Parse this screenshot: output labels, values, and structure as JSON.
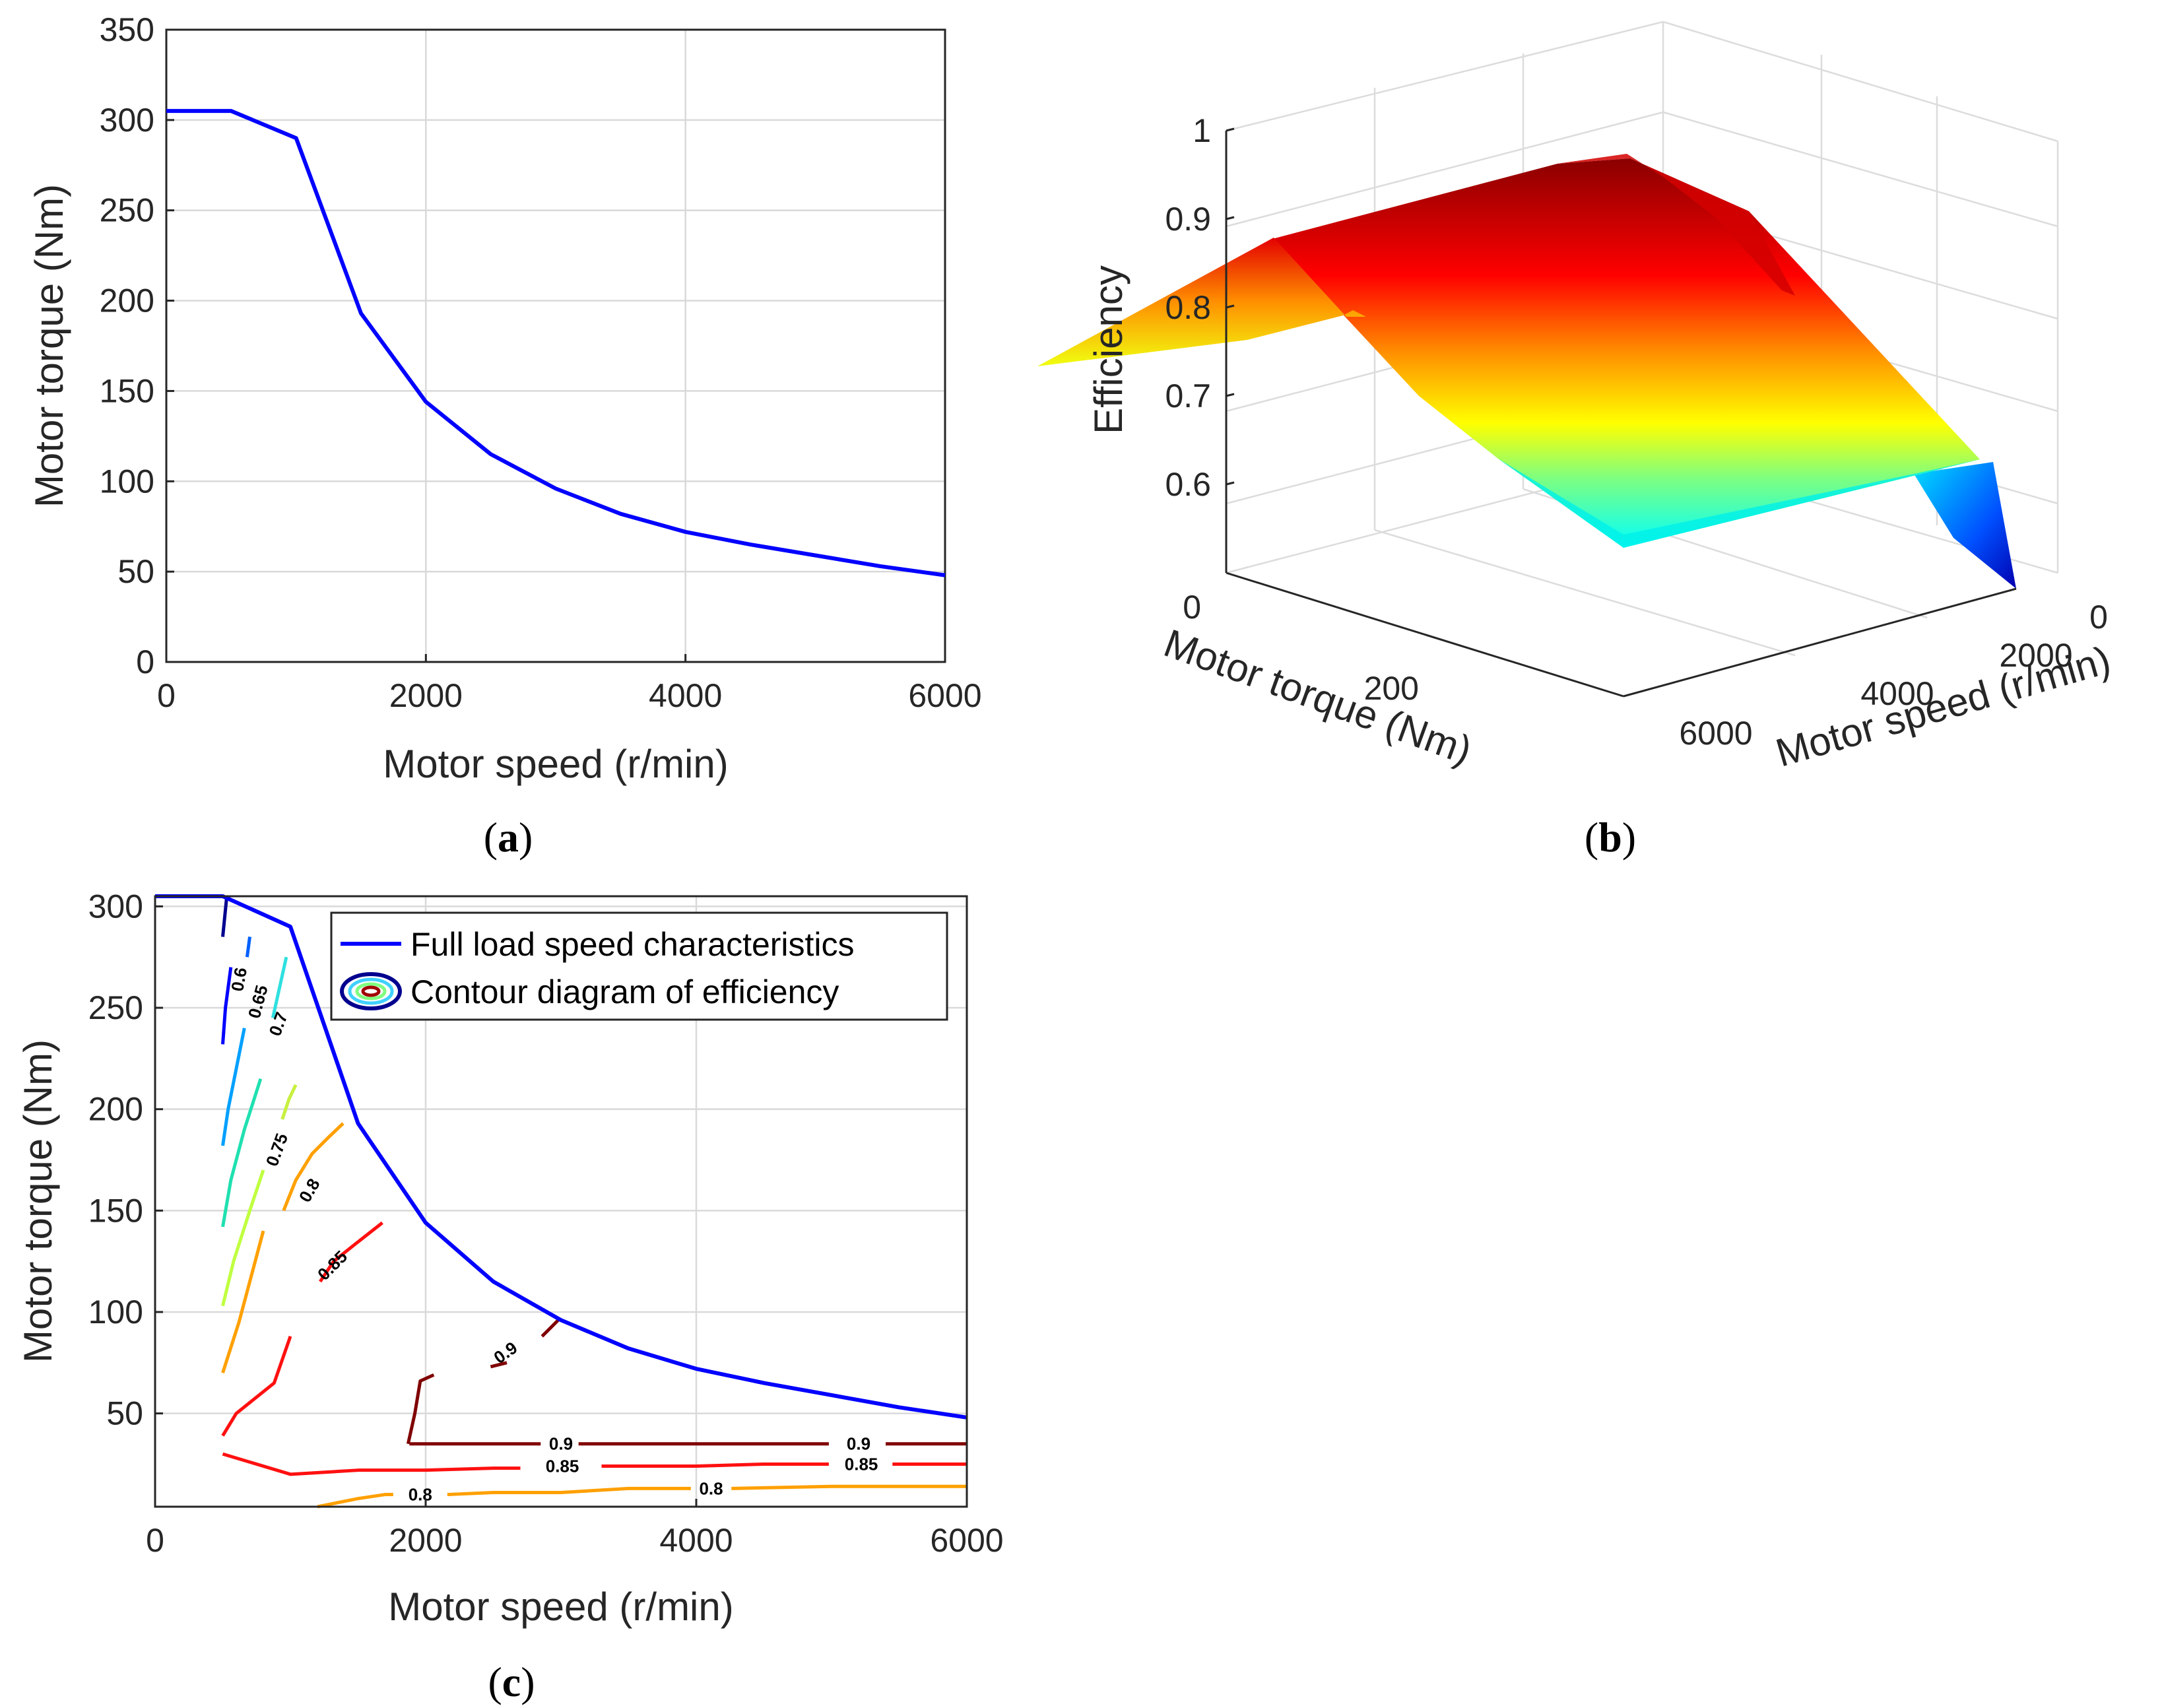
{
  "chart_data": [
    {
      "id": "a",
      "panel_label": "a",
      "type": "line",
      "xlabel": "Motor speed (r/min)",
      "ylabel": "Motor torque (Nm)",
      "xlim": [
        0,
        6000
      ],
      "ylim": [
        0,
        350
      ],
      "xticks": [
        "0",
        "2000",
        "4000",
        "6000"
      ],
      "yticks": [
        "0",
        "50",
        "100",
        "150",
        "200",
        "250",
        "300",
        "350"
      ],
      "grid": true,
      "series": [
        {
          "name": "Full load speed characteristics",
          "color": "#0000ff",
          "x": [
            0,
            500,
            1000,
            1500,
            2000,
            2500,
            3000,
            3500,
            4000,
            4500,
            5000,
            5500,
            6000
          ],
          "y": [
            305,
            305,
            290,
            193,
            144,
            115,
            96,
            82,
            72,
            65,
            59,
            53,
            48
          ]
        }
      ]
    },
    {
      "id": "b",
      "panel_label": "b",
      "type": "surface",
      "xlabel": "Motor torque (Nm)",
      "ylabel": "Motor speed (r/min)",
      "zlabel": "Efficiency",
      "zlim": [
        0.5,
        1
      ],
      "xticks": [
        "0",
        "200"
      ],
      "yticks": [
        "0",
        "2000",
        "4000",
        "6000"
      ],
      "zticks": [
        "0.6",
        "0.7",
        "0.8",
        "0.9",
        "1"
      ],
      "surface_profile": {
        "torque": [
          0,
          100,
          200,
          305
        ],
        "efficiency": [
          0.75,
          0.92,
          0.85,
          0.62
        ]
      },
      "colormap": "jet"
    },
    {
      "id": "c",
      "panel_label": "c",
      "type": "contour",
      "xlabel": "Motor speed (r/min)",
      "ylabel": "Motor torque (Nm)",
      "xlim": [
        0,
        6000
      ],
      "ylim": [
        4,
        305
      ],
      "xticks": [
        "0",
        "2000",
        "4000",
        "6000"
      ],
      "yticks": [
        "50",
        "100",
        "150",
        "200",
        "250",
        "300"
      ],
      "grid": true,
      "legend": {
        "placement": "top-right",
        "entries": [
          "Full load speed characteristics",
          "Contour diagram of efficiency"
        ]
      },
      "series": [
        {
          "name": "Full load speed characteristics",
          "color": "#0000ff",
          "x": [
            0,
            500,
            1000,
            1500,
            2000,
            2500,
            3000,
            3500,
            4000,
            4500,
            5000,
            5500,
            6000
          ],
          "y": [
            305,
            305,
            290,
            193,
            144,
            115,
            96,
            82,
            72,
            65,
            59,
            53,
            48
          ]
        }
      ],
      "contours": [
        {
          "level": "0.6",
          "color": "#00008f",
          "x": [
            500,
            530
          ],
          "y": [
            285,
            305
          ]
        },
        {
          "level": "0.6",
          "color": "#0000ff",
          "x": [
            500,
            520,
            560
          ],
          "y": [
            232,
            250,
            270
          ]
        },
        {
          "level": "0.65",
          "color": "#0060ff",
          "x": [
            680,
            700
          ],
          "y": [
            275,
            285
          ]
        },
        {
          "level": "0.65",
          "color": "#00a0ff",
          "x": [
            500,
            540,
            600,
            660
          ],
          "y": [
            182,
            200,
            220,
            240
          ]
        },
        {
          "level": "0.7",
          "color": "#30e0e0",
          "x": [
            870,
            920,
            970
          ],
          "y": [
            245,
            260,
            275
          ]
        },
        {
          "level": "0.7",
          "color": "#20e0b0",
          "x": [
            500,
            560,
            660,
            780
          ],
          "y": [
            142,
            165,
            190,
            215
          ]
        },
        {
          "level": "0.75",
          "color": "#c0ff40",
          "x": [
            500,
            580,
            700,
            800
          ],
          "y": [
            103,
            125,
            150,
            170
          ]
        },
        {
          "level": "0.75",
          "color": "#c8f040",
          "x": [
            940,
            990,
            1040
          ],
          "y": [
            195,
            205,
            212
          ]
        },
        {
          "level": "0.8",
          "color": "#ffa000",
          "x": [
            500,
            620,
            720,
            800
          ],
          "y": [
            70,
            95,
            120,
            140
          ]
        },
        {
          "level": "0.8",
          "color": "#ffa000",
          "x": [
            950,
            1040,
            1160,
            1280,
            1390
          ],
          "y": [
            150,
            165,
            178,
            186,
            193
          ]
        },
        {
          "level": "0.85",
          "color": "#ff1010",
          "x": [
            500,
            600,
            880,
            1000
          ],
          "y": [
            39,
            50,
            65,
            88
          ]
        },
        {
          "level": "0.85",
          "color": "#ff1010",
          "x": [
            1220,
            1320,
            1470,
            1680
          ],
          "y": [
            115,
            125,
            133,
            144
          ]
        },
        {
          "level": "0.9",
          "color": "#800000",
          "x": [
            1870,
            1920,
            1960,
            2060
          ],
          "y": [
            35,
            50,
            66,
            69
          ]
        },
        {
          "level": "0.9",
          "color": "#800000",
          "x": [
            2480,
            2600
          ],
          "y": [
            73,
            75
          ]
        },
        {
          "level": "0.9",
          "color": "#800000",
          "x": [
            2860,
            2980
          ],
          "y": [
            88,
            96
          ]
        },
        {
          "level": "0.9",
          "color": "#800000",
          "x": [
            1880,
            2850
          ],
          "y": [
            35,
            35
          ]
        },
        {
          "level": "0.9",
          "color": "#800000",
          "x": [
            3130,
            4980
          ],
          "y": [
            35,
            35
          ]
        },
        {
          "level": "0.9",
          "color": "#800000",
          "x": [
            5400,
            6000
          ],
          "y": [
            35,
            35
          ]
        },
        {
          "level": "0.85",
          "color": "#ff1010",
          "x": [
            500,
            1000,
            1500,
            2000,
            2500,
            2700
          ],
          "y": [
            30,
            20,
            22,
            22,
            23,
            23
          ]
        },
        {
          "level": "0.85",
          "color": "#ff1010",
          "x": [
            3300,
            4000,
            4500,
            4980
          ],
          "y": [
            24,
            24,
            25,
            25
          ]
        },
        {
          "level": "0.85",
          "color": "#ff1010",
          "x": [
            5450,
            6000
          ],
          "y": [
            25,
            25
          ]
        },
        {
          "level": "0.8",
          "color": "#ffa000",
          "x": [
            1200,
            1500,
            1700,
            1760
          ],
          "y": [
            4,
            8,
            10,
            10
          ]
        },
        {
          "level": "0.8",
          "color": "#ffa000",
          "x": [
            2160,
            2500,
            3000,
            3500,
            3960
          ],
          "y": [
            10,
            11,
            11,
            13,
            13
          ]
        },
        {
          "level": "0.8",
          "color": "#ffa000",
          "x": [
            4260,
            5000,
            6000
          ],
          "y": [
            13,
            14,
            14
          ]
        }
      ],
      "contour_labels": [
        {
          "text": "0.6",
          "x": 620,
          "y": 264,
          "angle": -80
        },
        {
          "text": "0.65",
          "x": 760,
          "y": 253,
          "angle": -75
        },
        {
          "text": "0.7",
          "x": 910,
          "y": 242,
          "angle": -70
        },
        {
          "text": "0.75",
          "x": 900,
          "y": 180,
          "angle": -70
        },
        {
          "text": "0.8",
          "x": 1140,
          "y": 160,
          "angle": -60
        },
        {
          "text": "0.85",
          "x": 1310,
          "y": 123,
          "angle": -45
        },
        {
          "text": "0.9",
          "x": 2590,
          "y": 80,
          "angle": -35
        },
        {
          "text": "0.9",
          "x": 3000,
          "y": 35,
          "angle": 0
        },
        {
          "text": "0.9",
          "x": 5200,
          "y": 35,
          "angle": 0
        },
        {
          "text": "0.85",
          "x": 3010,
          "y": 24,
          "angle": 0
        },
        {
          "text": "0.85",
          "x": 5220,
          "y": 25,
          "angle": 0
        },
        {
          "text": "0.8",
          "x": 1960,
          "y": 10,
          "angle": 0
        },
        {
          "text": "0.8",
          "x": 4110,
          "y": 13,
          "angle": 0
        }
      ]
    }
  ]
}
